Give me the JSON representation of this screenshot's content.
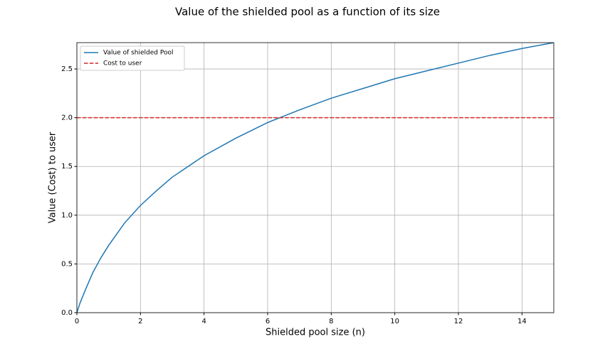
{
  "chart_data": {
    "type": "line",
    "title": "Value of the shielded pool as a function of its size",
    "xlabel": "Shielded pool size (n)",
    "ylabel": "Value (Cost) to user",
    "series": [
      {
        "name": "Value of shielded Pool",
        "color": "#1f77b4",
        "linestyle": "solid",
        "x": [
          0,
          0.1,
          0.25,
          0.5,
          0.75,
          1,
          1.5,
          2,
          2.5,
          3,
          4,
          5,
          6,
          7,
          8,
          9,
          10,
          11,
          12,
          13,
          14,
          15
        ],
        "values": [
          0,
          0.1,
          0.22,
          0.41,
          0.56,
          0.69,
          0.92,
          1.1,
          1.25,
          1.39,
          1.61,
          1.79,
          1.95,
          2.08,
          2.2,
          2.3,
          2.4,
          2.48,
          2.56,
          2.64,
          2.71,
          2.77
        ]
      },
      {
        "name": "Cost to user",
        "color": "#d62728",
        "linestyle": "dashed",
        "x": [
          0,
          15
        ],
        "values": [
          2,
          2
        ]
      }
    ],
    "xlim": [
      0,
      15
    ],
    "xticks": [
      0,
      2,
      4,
      6,
      8,
      10,
      12,
      14
    ],
    "ylim": [
      0,
      2.77
    ],
    "yticks": [
      {
        "value": 0,
        "label": "0.0"
      },
      {
        "value": 0.5,
        "label": "0.5"
      },
      {
        "value": 1,
        "label": "1.0"
      },
      {
        "value": 1.5,
        "label": "1.5"
      },
      {
        "value": 2,
        "label": "2.0"
      },
      {
        "value": 2.5,
        "label": "2.5"
      }
    ],
    "grid": true,
    "legend": "upper left"
  }
}
